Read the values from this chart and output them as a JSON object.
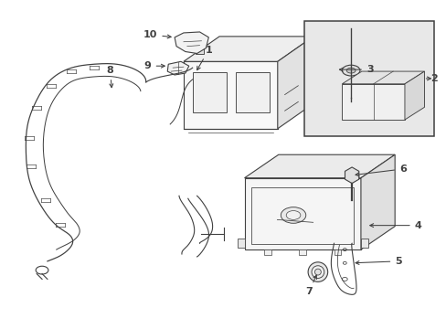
{
  "bg": "#ffffff",
  "lc": "#404040",
  "lw": 0.8,
  "inset_fill": "#e8e8e8",
  "fig_w": 4.89,
  "fig_h": 3.6,
  "dpi": 100
}
